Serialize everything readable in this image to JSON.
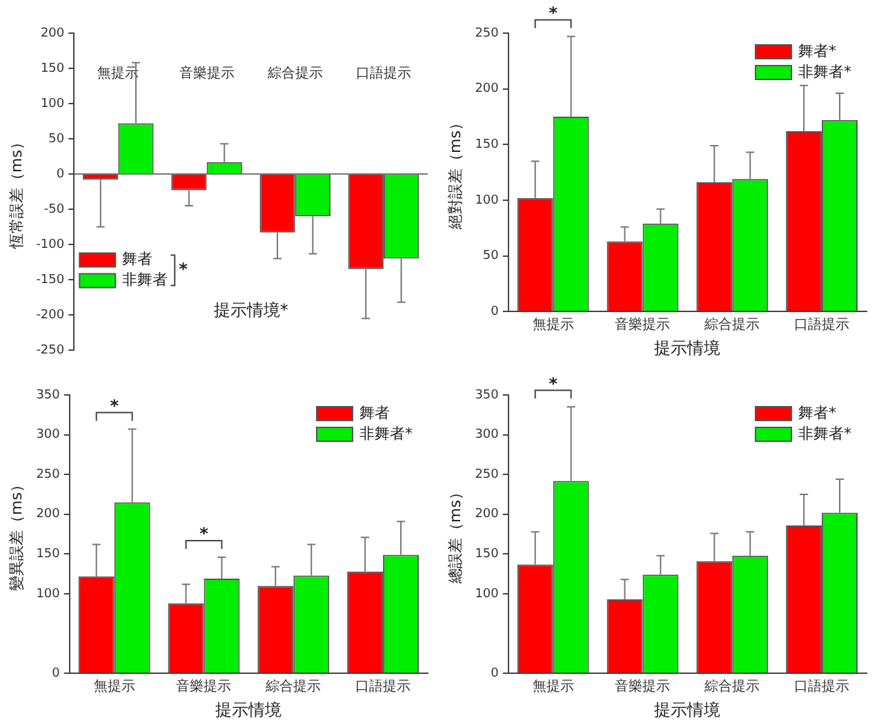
{
  "chart_data": [
    {
      "type": "bar",
      "xlabel": "提示情境*",
      "ylabel": "恆常誤差（ms）",
      "categories": [
        "無提示",
        "音樂提示",
        "綜合提示",
        "口語提示"
      ],
      "series": [
        {
          "name": "舞者",
          "color": "#ff0000",
          "values": [
            -8,
            -23,
            -83,
            -135
          ],
          "errors": [
            67,
            22,
            37,
            70
          ]
        },
        {
          "name": "非舞者",
          "color": "#00ee00",
          "values": [
            72,
            17,
            -60,
            -120
          ],
          "errors": [
            86,
            26,
            53,
            62
          ]
        }
      ],
      "ylim": [
        -250,
        200
      ],
      "yticks": [
        -250,
        -200,
        -150,
        -100,
        -50,
        0,
        50,
        100,
        150,
        200
      ],
      "legend": "left",
      "annotations": [
        "*"
      ]
    },
    {
      "type": "bar",
      "xlabel": "提示情境",
      "ylabel": "絕對誤差（ms）",
      "categories": [
        "無提示",
        "音樂提示",
        "綜合提示",
        "口語提示"
      ],
      "series": [
        {
          "name": "舞者*",
          "color": "#ff0000",
          "values": [
            102,
            63,
            116,
            162
          ],
          "errors": [
            33,
            13,
            33,
            41
          ]
        },
        {
          "name": "非舞者*",
          "color": "#00ee00",
          "values": [
            175,
            79,
            119,
            172
          ],
          "errors": [
            72,
            13,
            24,
            24
          ]
        }
      ],
      "ylim": [
        0,
        250
      ],
      "yticks": [
        0,
        50,
        100,
        150,
        200,
        250
      ],
      "legend": "top right",
      "annotations": [
        "*"
      ]
    },
    {
      "type": "bar",
      "xlabel": "提示情境",
      "ylabel": "變異誤差（ms）",
      "categories": [
        "無提示",
        "音樂提示",
        "綜合提示",
        "口語提示"
      ],
      "series": [
        {
          "name": "舞者",
          "color": "#ff0000",
          "values": [
            122,
            88,
            110,
            128
          ],
          "errors": [
            40,
            24,
            24,
            43
          ]
        },
        {
          "name": "非舞者*",
          "color": "#00ee00",
          "values": [
            215,
            119,
            123,
            149
          ],
          "errors": [
            92,
            27,
            39,
            42
          ]
        }
      ],
      "ylim": [
        0,
        350
      ],
      "yticks": [
        0,
        100,
        150,
        200,
        250,
        300,
        350
      ],
      "legend": "top right",
      "annotations": [
        "*",
        "*"
      ]
    },
    {
      "type": "bar",
      "xlabel": "提示情境",
      "ylabel": "總誤差（ms）",
      "categories": [
        "無提示",
        "音樂提示",
        "綜合提示",
        "口語提示"
      ],
      "series": [
        {
          "name": "舞者*",
          "color": "#ff0000",
          "values": [
            137,
            93,
            141,
            186
          ],
          "errors": [
            41,
            25,
            35,
            39
          ]
        },
        {
          "name": "非舞者*",
          "color": "#00ee00",
          "values": [
            242,
            124,
            148,
            202
          ],
          "errors": [
            93,
            24,
            30,
            42
          ]
        }
      ],
      "ylim": [
        0,
        350
      ],
      "yticks": [
        0,
        100,
        150,
        200,
        250,
        300,
        350
      ],
      "legend": "top right",
      "annotations": [
        "*"
      ]
    }
  ]
}
